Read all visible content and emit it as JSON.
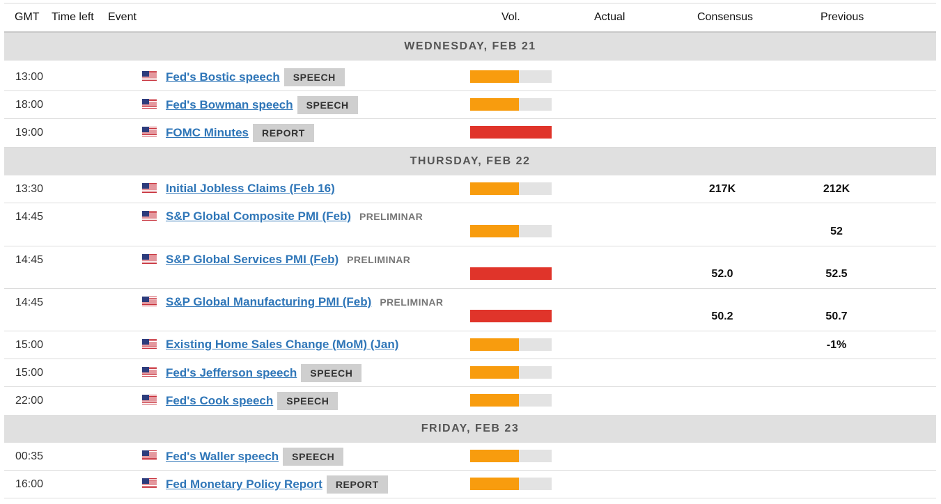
{
  "headers": {
    "gmt": "GMT",
    "time_left": "Time left",
    "event": "Event",
    "vol": "Vol.",
    "actual": "Actual",
    "consensus": "Consensus",
    "previous": "Previous"
  },
  "colors": {
    "medium": "#f89c0e",
    "high": "#e0342a",
    "bar_bg": "#e3e3e3",
    "link": "#2f76b8"
  },
  "days": [
    {
      "label": "WEDNESDAY, FEB 21"
    },
    {
      "label": "THURSDAY, FEB 22"
    },
    {
      "label": "FRIDAY, FEB 23"
    }
  ],
  "events": [
    {
      "time": "13:00",
      "name": "Fed's Bostic speech",
      "tag": "SPEECH",
      "volatility": 0.6,
      "vol_color": "#f89c0e",
      "actual": "",
      "consensus": "",
      "previous": ""
    },
    {
      "time": "18:00",
      "name": "Fed's Bowman speech",
      "tag": "SPEECH",
      "volatility": 0.6,
      "vol_color": "#f89c0e",
      "actual": "",
      "consensus": "",
      "previous": ""
    },
    {
      "time": "19:00",
      "name": "FOMC Minutes",
      "tag": "REPORT",
      "volatility": 1.0,
      "vol_color": "#e0342a",
      "actual": "",
      "consensus": "",
      "previous": ""
    },
    {
      "time": "13:30",
      "name": "Initial Jobless Claims (Feb 16)",
      "tag": "",
      "volatility": 0.6,
      "vol_color": "#f89c0e",
      "actual": "",
      "consensus": "217K",
      "previous": "212K"
    },
    {
      "time": "14:45",
      "name": "S&P Global Composite PMI (Feb)",
      "tag": "",
      "note": "PRELIMINAR",
      "volatility": 0.6,
      "vol_color": "#f89c0e",
      "actual": "",
      "consensus": "",
      "previous": "52"
    },
    {
      "time": "14:45",
      "name": "S&P Global Services PMI (Feb)",
      "tag": "",
      "note": "PRELIMINAR",
      "volatility": 1.0,
      "vol_color": "#e0342a",
      "actual": "",
      "consensus": "52.0",
      "previous": "52.5"
    },
    {
      "time": "14:45",
      "name": "S&P Global Manufacturing PMI (Feb)",
      "tag": "",
      "note": "PRELIMINAR",
      "volatility": 1.0,
      "vol_color": "#e0342a",
      "actual": "",
      "consensus": "50.2",
      "previous": "50.7"
    },
    {
      "time": "15:00",
      "name": "Existing Home Sales Change (MoM) (Jan)",
      "tag": "",
      "volatility": 0.6,
      "vol_color": "#f89c0e",
      "actual": "",
      "consensus": "",
      "previous": "-1%"
    },
    {
      "time": "15:00",
      "name": "Fed's Jefferson speech",
      "tag": "SPEECH",
      "volatility": 0.6,
      "vol_color": "#f89c0e",
      "actual": "",
      "consensus": "",
      "previous": ""
    },
    {
      "time": "22:00",
      "name": "Fed's Cook speech",
      "tag": "SPEECH",
      "volatility": 0.6,
      "vol_color": "#f89c0e",
      "actual": "",
      "consensus": "",
      "previous": ""
    },
    {
      "time": "00:35",
      "name": "Fed's Waller speech",
      "tag": "SPEECH",
      "volatility": 0.6,
      "vol_color": "#f89c0e",
      "actual": "",
      "consensus": "",
      "previous": ""
    },
    {
      "time": "16:00",
      "name": "Fed Monetary Policy Report",
      "tag": "REPORT",
      "volatility": 0.6,
      "vol_color": "#f89c0e",
      "actual": "",
      "consensus": "",
      "previous": ""
    }
  ]
}
